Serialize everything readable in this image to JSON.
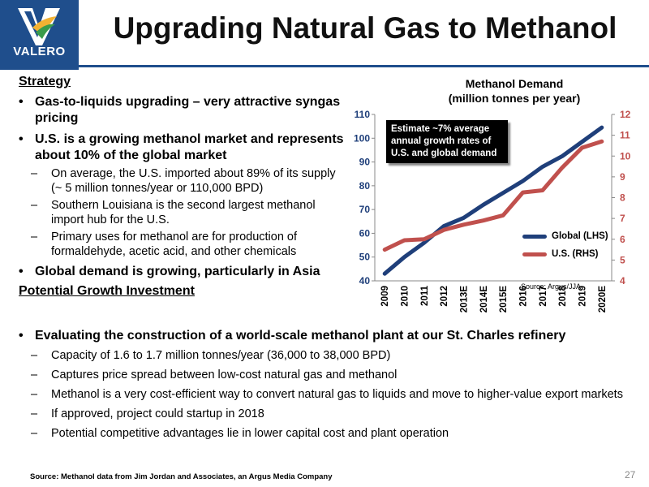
{
  "header": {
    "logo_text": "VALERO",
    "title": "Upgrading Natural Gas to Methanol",
    "brand_color": "#1f4e8c"
  },
  "strategy": {
    "heading": "Strategy",
    "bullets": [
      {
        "text": "Gas-to-liquids upgrading – very attractive syngas pricing"
      },
      {
        "text": "U.S. is a growing methanol market and represents about 10% of the global market",
        "sub": [
          "On average, the U.S. imported about 89% of its supply (~ 5 million tonnes/year or 110,000 BPD)",
          "Southern Louisiana is the second largest methanol import hub for the U.S.",
          "Primary uses for methanol are for production of formaldehyde, acetic acid, and other chemicals"
        ]
      },
      {
        "text": "Global demand is growing, particularly in Asia"
      }
    ]
  },
  "growth": {
    "heading": "Potential Growth Investment",
    "main": "Evaluating the construction of a world-scale methanol plant at our St. Charles refinery",
    "sub": [
      "Capacity of 1.6 to 1.7 million tonnes/year (36,000 to 38,000 BPD)",
      "Captures price spread between low-cost natural gas and methanol",
      "Methanol is a very cost-efficient way to convert natural gas to liquids and move to higher-value export markets",
      "If approved, project could startup in 2018",
      "Potential competitive advantages lie in lower capital cost and plant operation"
    ]
  },
  "chart_data": {
    "type": "line",
    "title": "Methanol Demand",
    "subtitle": "(million tonnes per year)",
    "categories": [
      "2009",
      "2010",
      "2011",
      "2012",
      "2013E",
      "2014E",
      "2015E",
      "2016",
      "2017",
      "2018",
      "2019",
      "2020E"
    ],
    "series": [
      {
        "name": "Global (LHS)",
        "axis": "left",
        "color": "#1f3f7a",
        "values": [
          43,
          50,
          56,
          63,
          66.5,
          72,
          77,
          82,
          88,
          92.5,
          98.5,
          104.5
        ]
      },
      {
        "name": "U.S. (RHS)",
        "axis": "right",
        "color": "#c0504d",
        "values": [
          5.5,
          5.95,
          6.0,
          6.45,
          6.7,
          6.9,
          7.15,
          8.25,
          8.35,
          9.45,
          10.4,
          10.7
        ]
      }
    ],
    "ylim_left": [
      40,
      110
    ],
    "yticks_left": [
      "40",
      "50",
      "60",
      "70",
      "80",
      "90",
      "100",
      "110"
    ],
    "ylim_right": [
      4,
      12
    ],
    "yticks_right": [
      "4",
      "5",
      "6",
      "7",
      "8",
      "9",
      "10",
      "11",
      "12"
    ],
    "right_axis_color": "#c0504d",
    "grid": false,
    "legend_position": "lower-right",
    "annotation": "Estimate ~7% average annual growth rates of U.S. and global demand",
    "source_note": "Source:  Argus/JJA"
  },
  "footer": {
    "source": "Source: Methanol data from  Jim Jordan and Associates, an Argus Media Company",
    "page_number": "27"
  }
}
